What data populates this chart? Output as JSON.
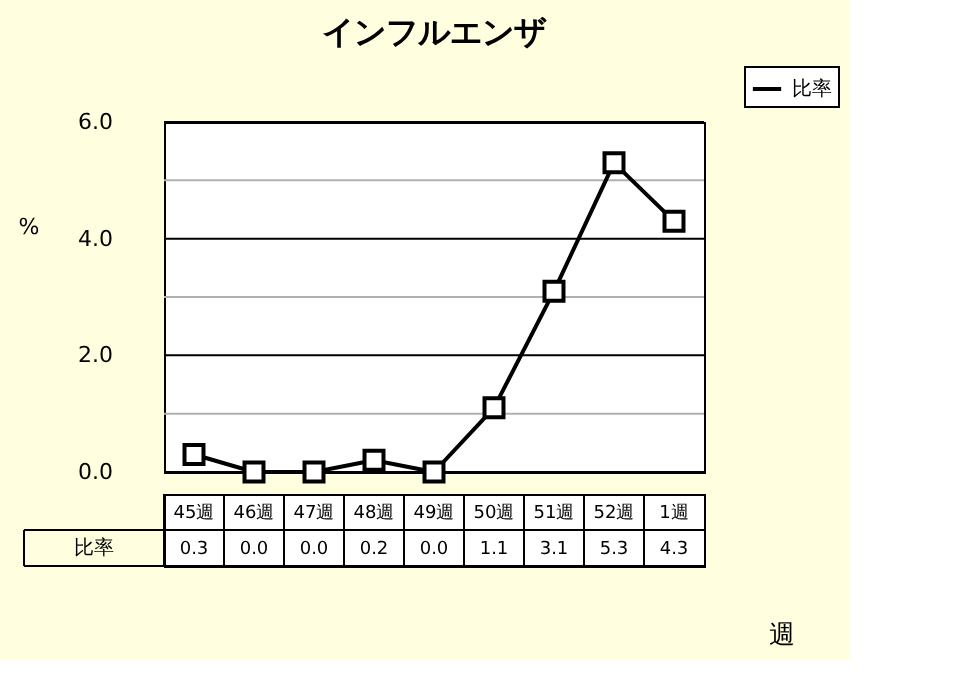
{
  "chart_data": {
    "type": "line",
    "title": "インフルエンザ",
    "ylabel": "%",
    "xlabel": "週",
    "categories": [
      "45週",
      "46週",
      "47週",
      "48週",
      "49週",
      "50週",
      "51週",
      "52週",
      "1週"
    ],
    "series": [
      {
        "name": "比率",
        "color": "#000000",
        "values": [
          0.3,
          0.0,
          0.0,
          0.2,
          0.0,
          1.1,
          3.1,
          5.3,
          4.3
        ],
        "value_labels": [
          "0.3",
          "0.0",
          "0.0",
          "0.2",
          "0.0",
          "1.1",
          "3.1",
          "5.3",
          "4.3"
        ]
      }
    ],
    "ylim": [
      0,
      6
    ],
    "yticks": [
      {
        "value": 0,
        "label": "0.0"
      },
      {
        "value": 1,
        "label": null
      },
      {
        "value": 2,
        "label": "2.0"
      },
      {
        "value": 3,
        "label": null
      },
      {
        "value": 4,
        "label": "4.0"
      },
      {
        "value": 5,
        "label": null
      },
      {
        "value": 6,
        "label": "6.0"
      }
    ],
    "grid": "y",
    "legend": "top right",
    "marker": "square",
    "line_style": "solid"
  }
}
